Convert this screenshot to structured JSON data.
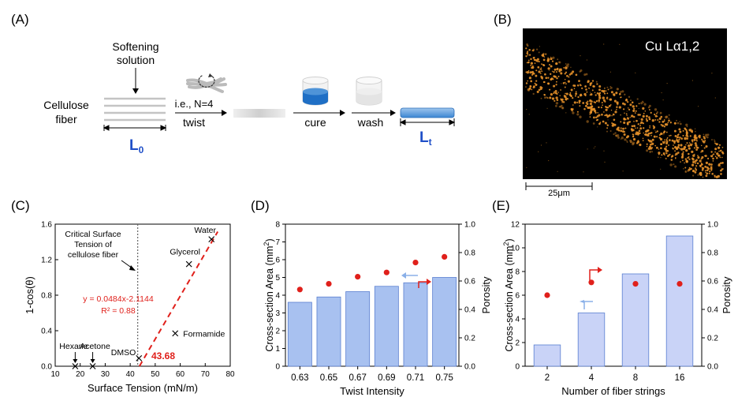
{
  "panel_labels": {
    "a": "(A)",
    "b": "(B)",
    "c": "(C)",
    "d": "(D)",
    "e": "(E)"
  },
  "schematic": {
    "softening_l1": "Softening",
    "softening_l2": "solution",
    "fiber_l1": "Cellulose",
    "fiber_l2": "fiber",
    "ie_label": "i.e., N=4",
    "twist_label": "twist",
    "cure_label": "cure",
    "wash_label": "wash",
    "l0_main": "L",
    "l0_sub": "0",
    "lt_main": "L",
    "lt_sub": "t",
    "label_color": "#1f4fc8",
    "liquid_color": "#1f6fc5"
  },
  "micrograph": {
    "title": "Cu Lα1,2",
    "scale_label": "25μm",
    "dot_color": "#e8922a"
  },
  "chart_data": [
    {
      "panel": "C",
      "type": "scatter",
      "xlabel": "Surface Tension (mN/m)",
      "ylabel": "1-cos(θ)",
      "xlim": [
        10,
        80
      ],
      "ylim": [
        0,
        1.6
      ],
      "xticks": [
        "10",
        "20",
        "30",
        "40",
        "50",
        "60",
        "70",
        "80"
      ],
      "yticks": [
        "0.0",
        "0.4",
        "0.8",
        "1.2",
        "1.6"
      ],
      "points": [
        {
          "label": "Hexane",
          "x": 18,
          "y": 0.0
        },
        {
          "label": "Acetone",
          "x": 25,
          "y": 0.0
        },
        {
          "label": "DMSO",
          "x": 43.5,
          "y": 0.09
        },
        {
          "label": "Formamide",
          "x": 58,
          "y": 0.37
        },
        {
          "label": "Glycerol",
          "x": 63.5,
          "y": 1.15
        },
        {
          "label": "Water",
          "x": 72.5,
          "y": 1.43
        }
      ],
      "fit": {
        "slope": 0.0484,
        "intercept": -2.1144,
        "x_range": [
          43.68,
          75
        ],
        "color": "#e0201b"
      },
      "equation": "y = 0.0484x-2.1144",
      "r2": "R² = 0.88",
      "critical_label": [
        "Critical Surface",
        "Tension of",
        "cellulose fiber"
      ],
      "critical_x": 43,
      "intercept_label": "43.68"
    },
    {
      "panel": "D",
      "type": "bar",
      "categories": [
        "0.63",
        "0.65",
        "0.67",
        "0.69",
        "0.71",
        "0.75"
      ],
      "xlabel": "Twist Intensity",
      "ylabel": "Cross-section Area (mm²)",
      "y2label": "Porosity",
      "ylim": [
        0,
        8
      ],
      "y2lim": [
        0,
        1.0
      ],
      "yticks": [
        "0",
        "1",
        "2",
        "3",
        "4",
        "5",
        "6",
        "7",
        "8"
      ],
      "y2ticks": [
        "0.0",
        "0.2",
        "0.4",
        "0.6",
        "0.8",
        "1.0"
      ],
      "series": [
        {
          "name": "Cross-section Area",
          "axis": "left",
          "values": [
            3.6,
            3.9,
            4.2,
            4.5,
            4.7,
            5.0
          ],
          "color": "#a8c1f0"
        },
        {
          "name": "Porosity",
          "axis": "right",
          "values": [
            0.54,
            0.58,
            0.63,
            0.66,
            0.73,
            0.77
          ],
          "color": "#e0201b"
        }
      ]
    },
    {
      "panel": "E",
      "type": "bar",
      "categories": [
        "2",
        "4",
        "8",
        "16"
      ],
      "xlabel": "Number of fiber strings",
      "ylabel": "Cross-section Area (mm²)",
      "y2label": "Porosity",
      "ylim": [
        0,
        12
      ],
      "y2lim": [
        0,
        1.0
      ],
      "yticks": [
        "0",
        "2",
        "4",
        "6",
        "8",
        "10",
        "12"
      ],
      "y2ticks": [
        "0.0",
        "0.2",
        "0.4",
        "0.6",
        "0.8",
        "1.0"
      ],
      "series": [
        {
          "name": "Cross-section Area",
          "axis": "left",
          "values": [
            1.8,
            4.5,
            7.8,
            11.0
          ],
          "color": "#c9d3f7"
        },
        {
          "name": "Porosity",
          "axis": "right",
          "values": [
            0.5,
            0.59,
            0.58,
            0.58
          ],
          "color": "#e0201b"
        }
      ]
    }
  ]
}
